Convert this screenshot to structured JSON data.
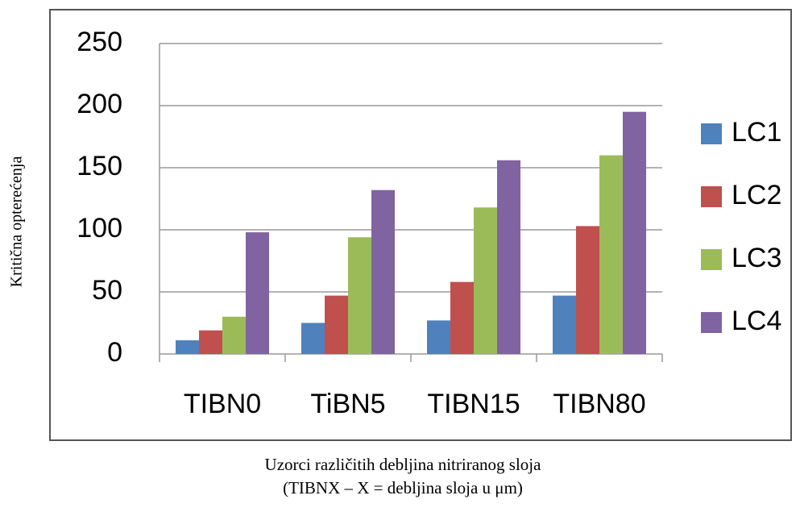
{
  "chart_data": {
    "type": "bar",
    "ylabel": "Kritična opterećenja",
    "xlabel": [
      "Uzorci različitih debljina nitriranog sloja",
      "(TIBNX – X = debljina sloja u μm)"
    ],
    "categories": [
      "TIBN0",
      "TiBN5",
      "TIBN15",
      "TIBN80"
    ],
    "series": [
      {
        "name": "LC1",
        "color": "#4f81bd",
        "values": [
          11,
          25,
          27,
          47
        ]
      },
      {
        "name": "LC2",
        "color": "#c0504d",
        "values": [
          19,
          47,
          58,
          103
        ]
      },
      {
        "name": "LC3",
        "color": "#9bbb59",
        "values": [
          30,
          94,
          118,
          160
        ]
      },
      {
        "name": "LC4",
        "color": "#8064a2",
        "values": [
          98,
          132,
          156,
          195
        ]
      }
    ],
    "ylim": [
      0,
      250
    ],
    "yticks": [
      0,
      50,
      100,
      150,
      200,
      250
    ],
    "grid": true,
    "legend": "right"
  }
}
